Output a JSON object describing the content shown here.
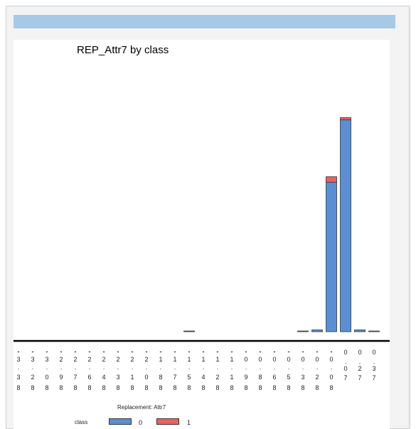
{
  "chart_data": {
    "type": "bar",
    "stacked": true,
    "title": "REP_Attr7 by class",
    "xlabel": "Replacement: Attr7",
    "categories": [
      "-3.38",
      "-3.28",
      "-3.08",
      "-2.98",
      "-2.78",
      "-2.68",
      "-2.48",
      "-2.38",
      "-2.18",
      "-2.08",
      "-1.88",
      "-1.78",
      "-1.58",
      "-1.48",
      "-1.28",
      "-1.18",
      "-0.98",
      "-0.88",
      "-0.68",
      "-0.58",
      "-0.38",
      "-0.28",
      "-0.08",
      "0.07",
      "0.27",
      "0.37"
    ],
    "category_lines": [
      [
        "-",
        "3",
        ".",
        "3",
        "8"
      ],
      [
        "-",
        "3",
        ".",
        "2",
        "8"
      ],
      [
        "-",
        "3",
        ".",
        "0",
        "8"
      ],
      [
        "-",
        "2",
        ".",
        "9",
        "8"
      ],
      [
        "-",
        "2",
        ".",
        "7",
        "8"
      ],
      [
        "-",
        "2",
        ".",
        "6",
        "8"
      ],
      [
        "-",
        "2",
        ".",
        "4",
        "8"
      ],
      [
        "-",
        "2",
        ".",
        "3",
        "8"
      ],
      [
        "-",
        "2",
        ".",
        "1",
        "8"
      ],
      [
        "-",
        "2",
        ".",
        "0",
        "8"
      ],
      [
        "-",
        "1",
        ".",
        "8",
        "8"
      ],
      [
        "-",
        "1",
        ".",
        "7",
        "8"
      ],
      [
        "-",
        "1",
        ".",
        "5",
        "8"
      ],
      [
        "-",
        "1",
        ".",
        "4",
        "8"
      ],
      [
        "-",
        "1",
        ".",
        "2",
        "8"
      ],
      [
        "-",
        "1",
        ".",
        "1",
        "8"
      ],
      [
        "-",
        "0",
        ".",
        "9",
        "8"
      ],
      [
        "-",
        "0",
        ".",
        "8",
        "8"
      ],
      [
        "-",
        "0",
        ".",
        "6",
        "8"
      ],
      [
        "-",
        "0",
        ".",
        "5",
        "8"
      ],
      [
        "-",
        "0",
        ".",
        "3",
        "8"
      ],
      [
        "-",
        "0",
        ".",
        "2",
        "8"
      ],
      [
        "-",
        "0",
        ".",
        "0",
        "8"
      ],
      [
        "0",
        ".",
        "0",
        "7"
      ],
      [
        "0",
        ".",
        "2",
        "7"
      ],
      [
        "0",
        ".",
        "3",
        "7"
      ]
    ],
    "series": [
      {
        "name": "0",
        "color": "#5b8fd4",
        "values": [
          0,
          0,
          0,
          0,
          0,
          0,
          0,
          0,
          0,
          0,
          0,
          0,
          0.3,
          0,
          0,
          0,
          0,
          0,
          0,
          0,
          0.3,
          0.8,
          67,
          95,
          0.8,
          0.3
        ]
      },
      {
        "name": "1",
        "color": "#f0605a",
        "values": [
          0,
          0,
          0,
          0,
          0,
          0,
          0,
          0,
          0,
          0,
          0,
          0,
          0,
          0,
          0,
          0,
          0,
          0,
          0,
          0,
          0,
          0,
          2.5,
          1,
          0,
          0
        ]
      }
    ],
    "legend": {
      "title": "class",
      "position": "bottom",
      "entries": [
        "0",
        "1"
      ]
    },
    "ylim": [
      0,
      100
    ],
    "grid": false,
    "y_axis_shown": false
  }
}
